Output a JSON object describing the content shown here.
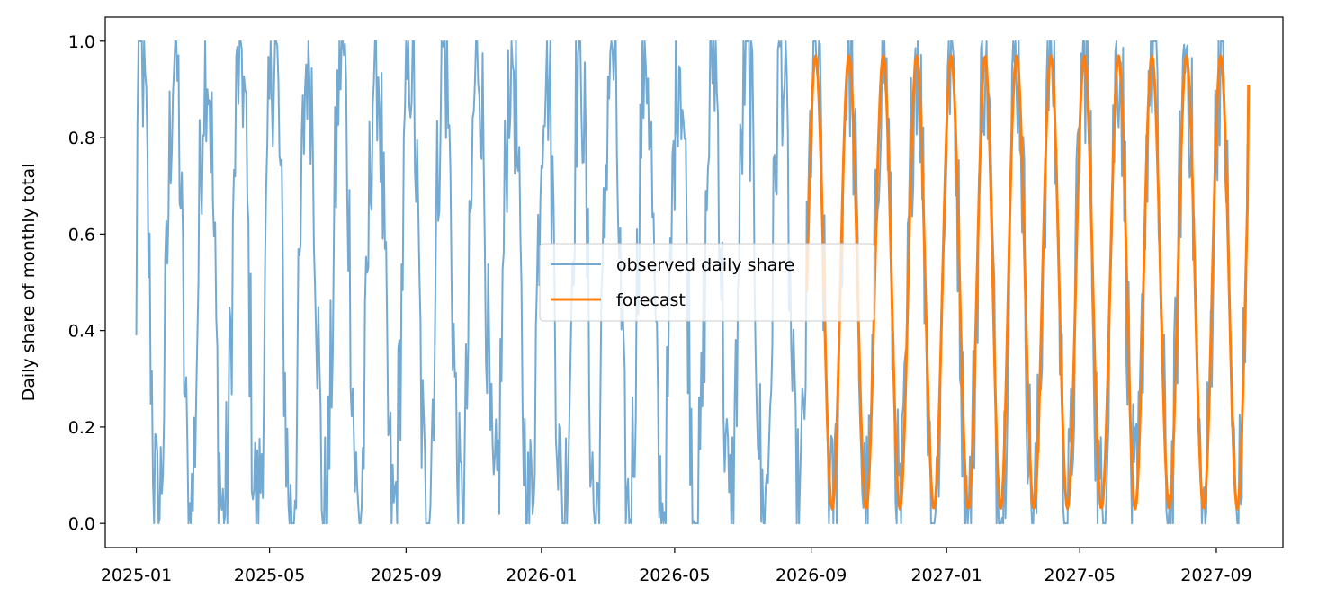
{
  "chart_data": {
    "type": "line",
    "title": "",
    "xlabel": "",
    "ylabel": "Daily share of monthly total",
    "x_axis": {
      "type": "date",
      "range": [
        "2024-12-04",
        "2027-10-31"
      ],
      "ticks": [
        "2025-01-01",
        "2025-05-01",
        "2025-09-01",
        "2026-01-01",
        "2026-05-01",
        "2026-09-01",
        "2027-01-01",
        "2027-05-01",
        "2027-09-01"
      ],
      "tick_labels": [
        "2025-01",
        "2025-05",
        "2025-09",
        "2026-01",
        "2026-05",
        "2026-09",
        "2027-01",
        "2027-05",
        "2027-09"
      ]
    },
    "y_axis": {
      "range": [
        -0.05,
        1.05
      ],
      "ticks": [
        0.0,
        0.2,
        0.4,
        0.6,
        0.8,
        1.0
      ],
      "tick_labels": [
        "0.0",
        "0.2",
        "0.4",
        "0.6",
        "0.8",
        "1.0"
      ]
    },
    "grid": false,
    "legend": {
      "position": "center"
    },
    "series": [
      {
        "name": "observed daily share",
        "color": "#74aad2",
        "x_start": "2025-01-01",
        "x_end": "2027-09-30",
        "frequency": "daily",
        "pattern": "noisy monthly cycle: rises from ~0.4 on the 1st to 1.0 near day 5, falls to 0.0 near day 20, rises again before month end",
        "y_min": 0.0,
        "y_max": 1.0,
        "first_value": 0.39
      },
      {
        "name": "forecast",
        "color": "#ff7f0e",
        "x_start": "2026-08-28",
        "x_end": "2027-09-30",
        "frequency": "daily",
        "pattern": "smooth monthly cycle between ~0.03 and ~0.97",
        "y_min": 0.03,
        "y_max": 0.97,
        "first_value": 0.48,
        "last_value": 0.91
      }
    ]
  }
}
